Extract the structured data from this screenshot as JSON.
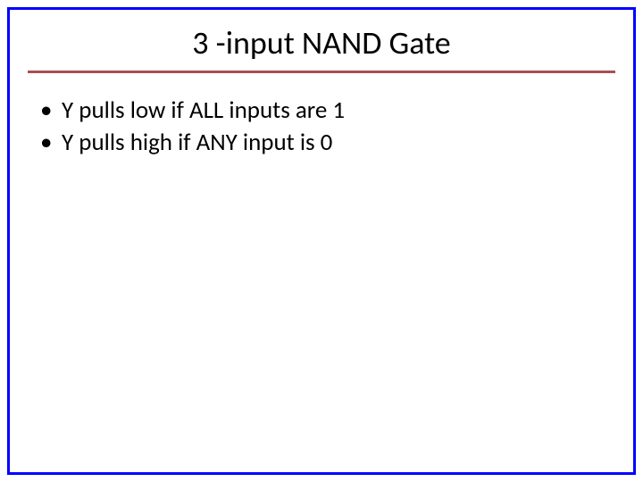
{
  "slide": {
    "title": "3 -input NAND Gate",
    "bullets": [
      "Y pulls low if ALL inputs are 1",
      "Y pulls high if ANY input is 0"
    ]
  },
  "style": {
    "frame_border_color": "#0000ff",
    "frame_border_width": 3,
    "underline_color": "#a85050",
    "underline_width": 3,
    "title_fontsize": 36,
    "title_color": "#000000",
    "bullet_fontsize": 27,
    "bullet_color": "#000000",
    "background_color": "#ffffff",
    "slide_width": 720,
    "slide_height": 540
  }
}
